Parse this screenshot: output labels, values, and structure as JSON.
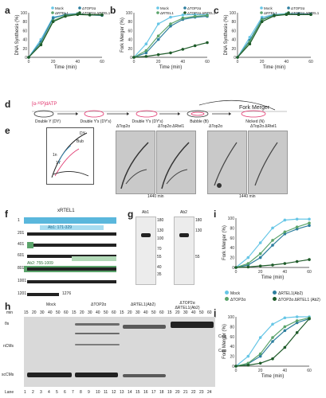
{
  "panels": {
    "a": "a",
    "b": "b",
    "c": "c",
    "d": "d",
    "e": "e",
    "f": "f",
    "g": "g",
    "h": "h",
    "i": "i",
    "j": "j"
  },
  "colors": {
    "mock": "#67c6e6",
    "top2": "#2d7e9e",
    "rtel": "#5aa36a",
    "double": "#1f5b2a"
  },
  "axes": {
    "dna_synthesis": "DNA Synthesis (%)",
    "fork_merger": "Fork Merger (%)",
    "time": "Time (min)"
  },
  "legend_abc": {
    "a": [
      "Mock",
      "ΔTOP2α",
      "ΔRTEL1",
      "ΔTOP2α ΔRTEL1"
    ],
    "b": [
      "Mock",
      "ΔTOP2α",
      "ΔRTEL1",
      "ΔTOP2α ΔRTEL1"
    ],
    "c": [
      "Mock",
      "ΔTOP2α",
      "ΔRTEL1",
      "ΔTOP2α ΔRTEL1"
    ]
  },
  "legend_ij": [
    "Mock",
    "ΔRTEL1(Ab2)",
    "ΔTOP2α",
    "ΔTOP2α ΔRTEL1 (Ab2)"
  ],
  "panel_d": {
    "label1": "[α-³²P]dATP",
    "label2": "Fork Merger",
    "steps": [
      "Double Y (DY)",
      "Double Y's (DY's)",
      "Double Y's (DY's)",
      "Bubble (B)",
      "Nicked (N)"
    ]
  },
  "panel_e": {
    "titles": [
      "ΔTop2α",
      "ΔTop2α ΔRtel1",
      "ΔTop2α",
      "ΔTop2α ΔRtel1"
    ],
    "time": [
      "1440 min",
      "1440 min"
    ],
    "labels": [
      "DY",
      "Bub",
      "1n",
      "1Y",
      "Lin",
      "Tail"
    ]
  },
  "panel_f": {
    "title": "xRTEL1",
    "rows": [
      "1",
      "201",
      "401",
      "601",
      "801",
      "1001",
      "1201"
    ],
    "ab1": "Ab1: 171-329",
    "ab2": "Ab2: 755-1009",
    "end": "1276"
  },
  "panel_g": {
    "lanes": [
      "Ab1",
      "Ab2"
    ],
    "markers": [
      "180",
      "130",
      "100",
      "70",
      "55",
      "40",
      "35",
      "25",
      "15"
    ]
  },
  "panel_h": {
    "groups": [
      "Mock",
      "ΔTOP2α",
      "ΔRTEL1(Ab2)",
      "ΔTOP2α ΔRTEL1(Ab2)"
    ],
    "min_label": "min",
    "times": [
      "15",
      "20",
      "30",
      "40",
      "50",
      "60",
      "15",
      "20",
      "30",
      "40",
      "50",
      "60",
      "15",
      "20",
      "30",
      "40",
      "50",
      "60",
      "15",
      "20",
      "30",
      "40",
      "50",
      "60"
    ],
    "row_labels": [
      "θs",
      "nCMs",
      "scCMs"
    ],
    "right_labels": [
      "Cats",
      "Cats"
    ],
    "lane_label": "Lane",
    "lanes": [
      "1",
      "2",
      "3",
      "4",
      "5",
      "6",
      "7",
      "8",
      "9",
      "10",
      "11",
      "12",
      "13",
      "14",
      "15",
      "16",
      "17",
      "18",
      "19",
      "20",
      "21",
      "22",
      "23",
      "24"
    ]
  },
  "chart_data": [
    {
      "type": "line",
      "panel": "a",
      "title": "",
      "xlabel": "Time (min)",
      "ylabel": "DNA Synthesis (%)",
      "xlim": [
        0,
        60
      ],
      "ylim": [
        0,
        100
      ],
      "series": [
        {
          "name": "Mock",
          "x": [
            0,
            10,
            20,
            30,
            40,
            50,
            60
          ],
          "y": [
            0,
            40,
            90,
            95,
            97,
            96,
            95
          ]
        },
        {
          "name": "ΔTOP2α",
          "x": [
            0,
            10,
            20,
            30,
            40,
            50,
            60
          ],
          "y": [
            0,
            35,
            88,
            96,
            98,
            95,
            94
          ]
        },
        {
          "name": "ΔRTEL1",
          "x": [
            0,
            10,
            20,
            30,
            40,
            50,
            60
          ],
          "y": [
            0,
            30,
            82,
            94,
            97,
            96,
            96
          ]
        },
        {
          "name": "ΔTOP2α ΔRTEL1",
          "x": [
            0,
            10,
            20,
            30,
            40,
            50,
            60
          ],
          "y": [
            0,
            28,
            80,
            92,
            96,
            95,
            95
          ]
        }
      ]
    },
    {
      "type": "line",
      "panel": "b",
      "title": "",
      "xlabel": "Time (min)",
      "ylabel": "Fork Merger (%)",
      "xlim": [
        0,
        60
      ],
      "ylim": [
        0,
        100
      ],
      "series": [
        {
          "name": "Mock",
          "x": [
            0,
            10,
            20,
            30,
            40,
            50,
            60
          ],
          "y": [
            0,
            30,
            75,
            90,
            95,
            96,
            96
          ]
        },
        {
          "name": "ΔTOP2α",
          "x": [
            0,
            10,
            20,
            30,
            40,
            50,
            60
          ],
          "y": [
            0,
            10,
            40,
            70,
            85,
            90,
            92
          ]
        },
        {
          "name": "ΔRTEL1",
          "x": [
            0,
            10,
            20,
            30,
            40,
            50,
            60
          ],
          "y": [
            0,
            15,
            48,
            75,
            88,
            92,
            94
          ]
        },
        {
          "name": "ΔTOP2α ΔRTEL1",
          "x": [
            0,
            10,
            20,
            30,
            40,
            50,
            60
          ],
          "y": [
            0,
            2,
            6,
            10,
            18,
            26,
            33
          ]
        }
      ]
    },
    {
      "type": "line",
      "panel": "c",
      "title": "",
      "xlabel": "Time (min)",
      "ylabel": "DNA Synthesis (%)",
      "xlim": [
        0,
        60
      ],
      "ylim": [
        0,
        100
      ],
      "series": [
        {
          "name": "Mock",
          "x": [
            0,
            10,
            20,
            30,
            40,
            50,
            60
          ],
          "y": [
            0,
            45,
            90,
            96,
            98,
            98,
            97
          ]
        },
        {
          "name": "ΔTOP2α",
          "x": [
            0,
            10,
            20,
            30,
            40,
            50,
            60
          ],
          "y": [
            0,
            38,
            86,
            95,
            97,
            97,
            97
          ]
        },
        {
          "name": "ΔRTEL1",
          "x": [
            0,
            10,
            20,
            30,
            40,
            50,
            60
          ],
          "y": [
            0,
            35,
            84,
            94,
            97,
            96,
            96
          ]
        },
        {
          "name": "ΔTOP2α ΔRTEL1",
          "x": [
            0,
            10,
            20,
            30,
            40,
            50,
            60
          ],
          "y": [
            0,
            30,
            80,
            93,
            96,
            96,
            96
          ]
        }
      ]
    },
    {
      "type": "line",
      "panel": "i",
      "title": "",
      "xlabel": "Time (min)",
      "ylabel": "Fork Merger (%)",
      "xlim": [
        0,
        60
      ],
      "ylim": [
        0,
        100
      ],
      "series": [
        {
          "name": "Mock",
          "x": [
            0,
            10,
            20,
            30,
            40,
            50,
            60
          ],
          "y": [
            0,
            20,
            50,
            80,
            96,
            98,
            98
          ]
        },
        {
          "name": "ΔTOP2α",
          "x": [
            0,
            10,
            20,
            30,
            40,
            50,
            60
          ],
          "y": [
            0,
            5,
            20,
            45,
            68,
            78,
            85
          ]
        },
        {
          "name": "ΔRTEL1(Ab2)",
          "x": [
            0,
            10,
            20,
            30,
            40,
            50,
            60
          ],
          "y": [
            0,
            8,
            28,
            55,
            72,
            82,
            90
          ]
        },
        {
          "name": "ΔTOP2α ΔRTEL1 (Ab2)",
          "x": [
            0,
            10,
            20,
            30,
            40,
            50,
            60
          ],
          "y": [
            0,
            1,
            3,
            5,
            8,
            12,
            16
          ]
        }
      ]
    },
    {
      "type": "line",
      "panel": "j",
      "title": "",
      "xlabel": "Time (min)",
      "ylabel": "Fork Merger (%)",
      "xlim": [
        0,
        60
      ],
      "ylim": [
        0,
        100
      ],
      "series": [
        {
          "name": "Mock",
          "x": [
            0,
            10,
            20,
            30,
            40,
            50,
            60
          ],
          "y": [
            0,
            20,
            58,
            85,
            98,
            100,
            100
          ]
        },
        {
          "name": "ΔTOP2α",
          "x": [
            0,
            10,
            20,
            30,
            40,
            50,
            60
          ],
          "y": [
            0,
            5,
            20,
            50,
            72,
            88,
            96
          ]
        },
        {
          "name": "ΔRTEL1(Ab2)",
          "x": [
            0,
            10,
            20,
            30,
            40,
            50,
            60
          ],
          "y": [
            0,
            6,
            25,
            58,
            80,
            92,
            98
          ]
        },
        {
          "name": "ΔTOP2α ΔRTEL1 (Ab2)",
          "x": [
            0,
            10,
            20,
            30,
            40,
            50,
            60
          ],
          "y": [
            0,
            2,
            6,
            15,
            38,
            68,
            96
          ]
        }
      ]
    }
  ]
}
